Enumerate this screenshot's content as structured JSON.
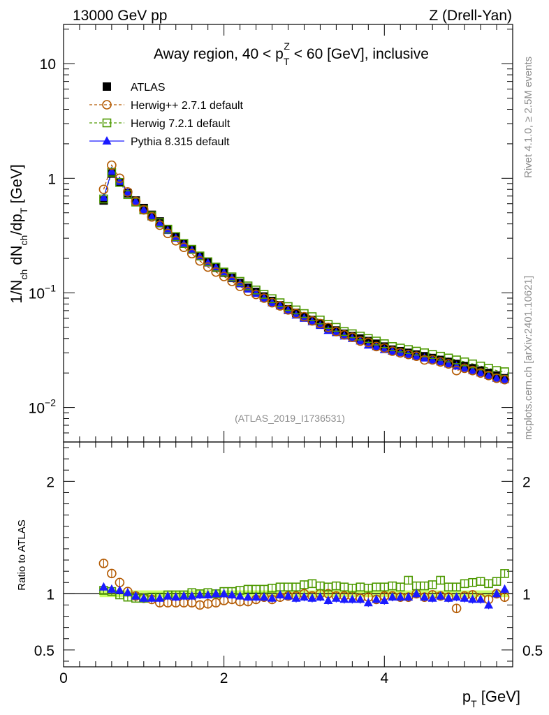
{
  "header": {
    "left": "13000 GeV pp",
    "right": "Z (Drell-Yan)"
  },
  "side_labels": {
    "rivet": "Rivet 4.1.0, ≥ 2.5M events",
    "mcplots": "mcplots.cern.ch [arXiv:2401.10621]"
  },
  "watermark": "(ATLAS_2019_I1736531)",
  "colors": {
    "atlas": "#000000",
    "herwigpp": "#b35900",
    "herwig7": "#4d9900",
    "pythia": "#1a1aff",
    "band": "#ccff66"
  },
  "chart_data": [
    {
      "type": "line",
      "panel": "main",
      "title_parts": [
        "Away region, 40 < p",
        "T",
        "Z",
        " < 60 [GeV], inclusive"
      ],
      "ylabel_parts": [
        "1/N",
        "ch",
        " dN",
        "ch",
        "/dp",
        "T",
        " [GeV]"
      ],
      "yscale": "log",
      "ylim": [
        0.005,
        22
      ],
      "xlim": [
        0,
        5.6
      ],
      "ytick_labels": [
        {
          "value": 10,
          "base": "10",
          "exp": ""
        },
        {
          "value": 1,
          "base": "1",
          "exp": ""
        },
        {
          "value": 0.1,
          "base": "10",
          "exp": "−1"
        },
        {
          "value": 0.01,
          "base": "10",
          "exp": "−2"
        }
      ],
      "legend_position": "top-left",
      "x": [
        0.5,
        0.6,
        0.7,
        0.8,
        0.9,
        1.0,
        1.1,
        1.2,
        1.3,
        1.4,
        1.5,
        1.6,
        1.7,
        1.8,
        1.9,
        2.0,
        2.1,
        2.2,
        2.3,
        2.4,
        2.5,
        2.6,
        2.7,
        2.8,
        2.9,
        3.0,
        3.1,
        3.2,
        3.3,
        3.4,
        3.5,
        3.6,
        3.7,
        3.8,
        3.9,
        4.0,
        4.1,
        4.2,
        4.3,
        4.4,
        4.5,
        4.6,
        4.7,
        4.8,
        4.9,
        5.0,
        5.1,
        5.2,
        5.3,
        5.4,
        5.5
      ],
      "series": [
        {
          "name": "ATLAS",
          "key": "atlas",
          "marker": "filled-square",
          "line": "none",
          "values": [
            0.64,
            1.1,
            0.92,
            0.74,
            0.64,
            0.55,
            0.48,
            0.42,
            0.36,
            0.31,
            0.27,
            0.24,
            0.21,
            0.185,
            0.166,
            0.15,
            0.135,
            0.122,
            0.111,
            0.102,
            0.093,
            0.085,
            0.078,
            0.072,
            0.067,
            0.062,
            0.058,
            0.054,
            0.05,
            0.047,
            0.044,
            0.042,
            0.04,
            0.038,
            0.036,
            0.034,
            0.032,
            0.031,
            0.03,
            0.029,
            0.028,
            0.027,
            0.026,
            0.025,
            0.024,
            0.023,
            0.022,
            0.021,
            0.02,
            0.019,
            0.018
          ]
        },
        {
          "name": "Herwig++ 2.7.1 default",
          "key": "herwigpp",
          "marker": "open-circle",
          "line": "dashed",
          "values": [
            0.8,
            1.3,
            1.0,
            0.76,
            0.63,
            0.53,
            0.46,
            0.39,
            0.33,
            0.285,
            0.25,
            0.22,
            0.19,
            0.168,
            0.152,
            0.139,
            0.126,
            0.114,
            0.103,
            0.097,
            0.09,
            0.082,
            0.077,
            0.071,
            0.066,
            0.062,
            0.057,
            0.054,
            0.05,
            0.046,
            0.043,
            0.041,
            0.038,
            0.037,
            0.034,
            0.033,
            0.031,
            0.03,
            0.029,
            0.028,
            0.026,
            0.026,
            0.025,
            0.024,
            0.021,
            0.022,
            0.021,
            0.02,
            0.019,
            0.018,
            0.0175
          ]
        },
        {
          "name": "Herwig 7.2.1 default",
          "key": "herwig7",
          "marker": "open-square",
          "line": "dashed",
          "values": [
            0.66,
            1.13,
            0.92,
            0.72,
            0.62,
            0.53,
            0.47,
            0.41,
            0.36,
            0.31,
            0.27,
            0.24,
            0.21,
            0.187,
            0.168,
            0.152,
            0.138,
            0.126,
            0.115,
            0.106,
            0.097,
            0.089,
            0.082,
            0.076,
            0.071,
            0.066,
            0.062,
            0.058,
            0.053,
            0.05,
            0.046,
            0.044,
            0.042,
            0.04,
            0.038,
            0.036,
            0.034,
            0.033,
            0.032,
            0.031,
            0.03,
            0.029,
            0.028,
            0.027,
            0.026,
            0.025,
            0.024,
            0.023,
            0.022,
            0.021,
            0.0205
          ]
        },
        {
          "name": "Pythia 8.315 default",
          "key": "pythia",
          "marker": "filled-triangle",
          "line": "solid",
          "values": [
            0.68,
            1.15,
            0.94,
            0.75,
            0.63,
            0.53,
            0.46,
            0.4,
            0.35,
            0.3,
            0.265,
            0.235,
            0.207,
            0.183,
            0.166,
            0.15,
            0.134,
            0.12,
            0.108,
            0.099,
            0.09,
            0.082,
            0.077,
            0.07,
            0.064,
            0.06,
            0.056,
            0.052,
            0.047,
            0.045,
            0.042,
            0.04,
            0.038,
            0.035,
            0.034,
            0.032,
            0.031,
            0.03,
            0.029,
            0.028,
            0.027,
            0.026,
            0.025,
            0.024,
            0.023,
            0.022,
            0.021,
            0.02,
            0.019,
            0.018,
            0.0175
          ]
        }
      ]
    },
    {
      "type": "line",
      "panel": "ratio",
      "ylabel": "Ratio to ATLAS",
      "xlabel_parts": [
        "p",
        "T",
        " [GeV]"
      ],
      "ylim": [
        0.35,
        2.35
      ],
      "xlim": [
        0,
        5.6
      ],
      "ytick_labels": [
        "0.5",
        "1",
        "2"
      ],
      "xtick_labels": [
        "0",
        "2",
        "4"
      ],
      "reference_band": 0.03,
      "x": [
        0.5,
        0.6,
        0.7,
        0.8,
        0.9,
        1.0,
        1.1,
        1.2,
        1.3,
        1.4,
        1.5,
        1.6,
        1.7,
        1.8,
        1.9,
        2.0,
        2.1,
        2.2,
        2.3,
        2.4,
        2.5,
        2.6,
        2.7,
        2.8,
        2.9,
        3.0,
        3.1,
        3.2,
        3.3,
        3.4,
        3.5,
        3.6,
        3.7,
        3.8,
        3.9,
        4.0,
        4.1,
        4.2,
        4.3,
        4.4,
        4.5,
        4.6,
        4.7,
        4.8,
        4.9,
        5.0,
        5.1,
        5.2,
        5.3,
        5.4,
        5.5
      ],
      "series": [
        {
          "name": "Herwig++ 2.7.1 default",
          "key": "herwigpp",
          "marker": "open-circle",
          "values": [
            1.27,
            1.18,
            1.1,
            1.02,
            0.98,
            0.96,
            0.95,
            0.92,
            0.92,
            0.92,
            0.92,
            0.92,
            0.9,
            0.91,
            0.92,
            0.94,
            0.95,
            0.93,
            0.93,
            0.95,
            0.97,
            0.95,
            0.97,
            0.98,
            0.98,
            1.0,
            0.98,
            1.0,
            1.0,
            0.98,
            0.98,
            0.98,
            0.96,
            0.97,
            0.95,
            0.98,
            0.98,
            0.97,
            0.97,
            1.0,
            0.97,
            0.99,
            0.98,
            0.97,
            0.87,
            0.98,
            0.99,
            0.96,
            0.95,
            1.0,
            0.97
          ]
        },
        {
          "name": "Herwig 7.2.1 default",
          "key": "herwig7",
          "marker": "open-square",
          "values": [
            1.03,
            1.02,
            0.99,
            0.97,
            0.96,
            0.96,
            0.97,
            0.97,
            0.99,
            0.99,
            0.99,
            1.01,
            1.0,
            1.01,
            1.0,
            1.02,
            1.02,
            1.03,
            1.04,
            1.04,
            1.04,
            1.05,
            1.06,
            1.06,
            1.06,
            1.08,
            1.09,
            1.07,
            1.06,
            1.07,
            1.06,
            1.05,
            1.06,
            1.05,
            1.06,
            1.06,
            1.07,
            1.06,
            1.12,
            1.07,
            1.07,
            1.08,
            1.12,
            1.06,
            1.06,
            1.09,
            1.1,
            1.11,
            1.09,
            1.11,
            1.18
          ]
        },
        {
          "name": "Pythia 8.315 default",
          "key": "pythia",
          "marker": "filled-triangle",
          "values": [
            1.06,
            1.04,
            1.03,
            1.01,
            0.98,
            0.96,
            0.96,
            0.96,
            0.98,
            0.97,
            0.98,
            0.98,
            0.99,
            0.99,
            1.0,
            1.0,
            0.99,
            0.98,
            0.97,
            0.97,
            0.97,
            0.96,
            0.99,
            0.98,
            0.96,
            0.97,
            0.96,
            0.97,
            0.94,
            0.96,
            0.95,
            0.95,
            0.95,
            0.92,
            0.95,
            0.94,
            0.97,
            0.97,
            0.97,
            1.0,
            0.97,
            0.96,
            0.98,
            0.96,
            0.97,
            0.96,
            0.95,
            0.95,
            0.9,
            1.0,
            1.04
          ]
        }
      ]
    }
  ]
}
